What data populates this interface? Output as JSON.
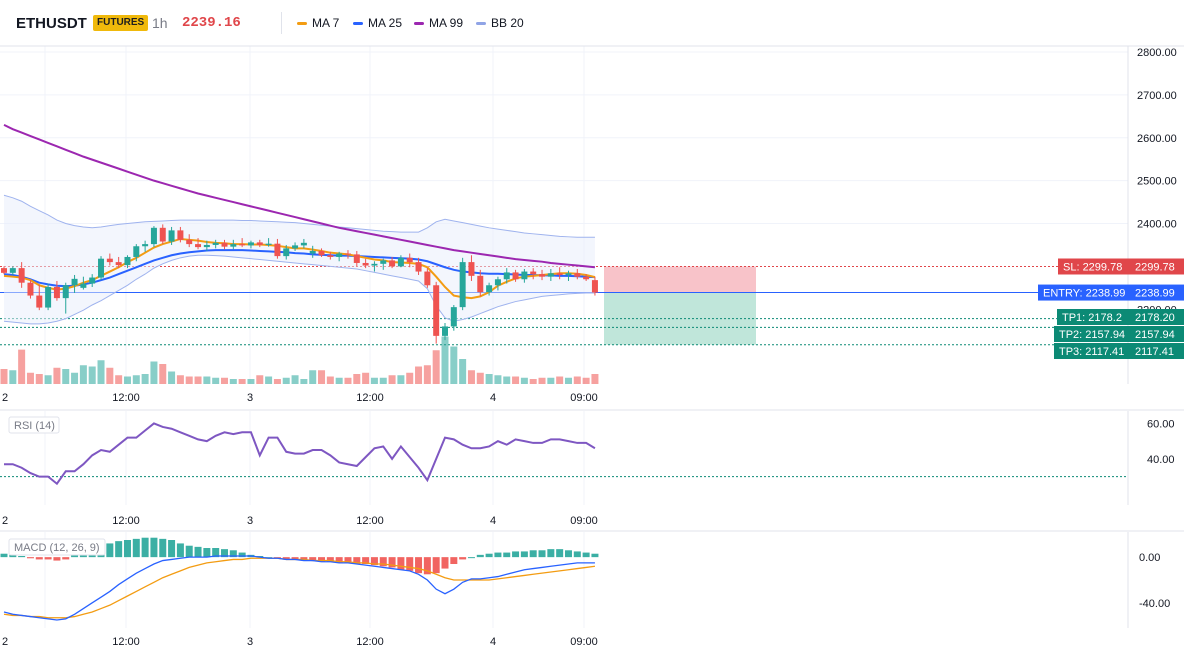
{
  "header": {
    "symbol": "ETHUSDT",
    "badge": "FUTURES",
    "timeframe": "1h",
    "price": "2239.16",
    "legend": [
      {
        "label": "MA 7",
        "color": "#f39c12"
      },
      {
        "label": "MA 25",
        "color": "#2962ff"
      },
      {
        "label": "MA 99",
        "color": "#9c27b0"
      },
      {
        "label": "BB 20",
        "color": "#90a4e6"
      }
    ]
  },
  "colors": {
    "up": "#26a69a",
    "down": "#ef5350",
    "ma7": "#f39c12",
    "ma25": "#2962ff",
    "ma99": "#9c27b0",
    "bb": "#9fb3ee",
    "rsi": "#7e57c2",
    "macd": "#2962ff",
    "signal": "#f39c12"
  },
  "time_axis": [
    "2",
    "12:00",
    "3",
    "12:00",
    "4",
    "09:00"
  ],
  "chart_data": [
    {
      "type": "candlestick",
      "yaxis": {
        "ticks": [
          "2800.00",
          "2700.00",
          "2600.00",
          "2500.00",
          "2400.00",
          "2200.00"
        ],
        "range": [
          2100,
          2820
        ]
      },
      "candles": [
        [
          2296,
          2300,
          2282,
          2285
        ],
        [
          2285,
          2300,
          2280,
          2296
        ],
        [
          2296,
          2310,
          2250,
          2262
        ],
        [
          2262,
          2268,
          2225,
          2232
        ],
        [
          2232,
          2258,
          2198,
          2204
        ],
        [
          2204,
          2260,
          2198,
          2252
        ],
        [
          2252,
          2266,
          2220,
          2226
        ],
        [
          2226,
          2262,
          2190,
          2256
        ],
        [
          2256,
          2280,
          2238,
          2271
        ],
        [
          2250,
          2276,
          2246,
          2260
        ],
        [
          2260,
          2282,
          2252,
          2274
        ],
        [
          2274,
          2324,
          2268,
          2318
        ],
        [
          2318,
          2330,
          2302,
          2310
        ],
        [
          2310,
          2322,
          2296,
          2303
        ],
        [
          2303,
          2326,
          2296,
          2322
        ],
        [
          2322,
          2352,
          2312,
          2347
        ],
        [
          2347,
          2360,
          2334,
          2352
        ],
        [
          2352,
          2394,
          2345,
          2390
        ],
        [
          2390,
          2398,
          2352,
          2358
        ],
        [
          2358,
          2392,
          2350,
          2384
        ],
        [
          2384,
          2392,
          2356,
          2362
        ],
        [
          2362,
          2375,
          2345,
          2352
        ],
        [
          2352,
          2366,
          2340,
          2345
        ],
        [
          2345,
          2360,
          2336,
          2350
        ],
        [
          2350,
          2362,
          2342,
          2355
        ],
        [
          2355,
          2362,
          2340,
          2346
        ],
        [
          2346,
          2362,
          2340,
          2352
        ],
        [
          2352,
          2366,
          2345,
          2349
        ],
        [
          2349,
          2360,
          2342,
          2356
        ],
        [
          2356,
          2362,
          2345,
          2350
        ],
        [
          2350,
          2366,
          2346,
          2353
        ],
        [
          2353,
          2364,
          2318,
          2324
        ],
        [
          2324,
          2350,
          2316,
          2342
        ],
        [
          2342,
          2356,
          2336,
          2349
        ],
        [
          2349,
          2364,
          2342,
          2355
        ],
        [
          2330,
          2348,
          2320,
          2336
        ],
        [
          2336,
          2342,
          2322,
          2326
        ],
        [
          2326,
          2334,
          2316,
          2322
        ],
        [
          2322,
          2334,
          2312,
          2330
        ],
        [
          2330,
          2338,
          2318,
          2328
        ],
        [
          2328,
          2336,
          2300,
          2308
        ],
        [
          2308,
          2318,
          2296,
          2302
        ],
        [
          2302,
          2312,
          2288,
          2306
        ],
        [
          2306,
          2318,
          2292,
          2314
        ],
        [
          2314,
          2322,
          2296,
          2300
        ],
        [
          2300,
          2326,
          2298,
          2320
        ],
        [
          2320,
          2330,
          2298,
          2310
        ],
        [
          2310,
          2320,
          2280,
          2288
        ],
        [
          2288,
          2296,
          2250,
          2256
        ],
        [
          2256,
          2264,
          2120,
          2138
        ],
        [
          2138,
          2168,
          2128,
          2160
        ],
        [
          2160,
          2210,
          2150,
          2205
        ],
        [
          2205,
          2320,
          2198,
          2310
        ],
        [
          2310,
          2326,
          2266,
          2278
        ],
        [
          2278,
          2292,
          2230,
          2240
        ],
        [
          2240,
          2262,
          2232,
          2256
        ],
        [
          2256,
          2276,
          2244,
          2270
        ],
        [
          2270,
          2296,
          2260,
          2286
        ],
        [
          2286,
          2292,
          2264,
          2270
        ],
        [
          2270,
          2294,
          2262,
          2288
        ],
        [
          2288,
          2296,
          2270,
          2282
        ],
        [
          2282,
          2292,
          2268,
          2276
        ],
        [
          2276,
          2294,
          2266,
          2284
        ],
        [
          2284,
          2298,
          2270,
          2280
        ],
        [
          2280,
          2290,
          2266,
          2284
        ],
        [
          2284,
          2294,
          2270,
          2276
        ],
        [
          2276,
          2282,
          2266,
          2270
        ],
        [
          2268,
          2276,
          2232,
          2239.16
        ]
      ],
      "volume": [
        24,
        22,
        55,
        18,
        16,
        14,
        26,
        24,
        18,
        30,
        28,
        38,
        26,
        14,
        12,
        14,
        16,
        36,
        32,
        20,
        14,
        12,
        12,
        12,
        10,
        10,
        8,
        8,
        8,
        14,
        12,
        8,
        10,
        14,
        8,
        22,
        22,
        12,
        10,
        10,
        16,
        18,
        10,
        10,
        14,
        14,
        18,
        28,
        30,
        54,
        76,
        60,
        40,
        22,
        18,
        16,
        14,
        12,
        12,
        10,
        8,
        10,
        10,
        12,
        10,
        12,
        10,
        16
      ],
      "ma7": [
        2278,
        2276,
        2274,
        2268,
        2256,
        2250,
        2246,
        2248,
        2254,
        2262,
        2268,
        2278,
        2288,
        2298,
        2310,
        2320,
        2332,
        2344,
        2352,
        2358,
        2364,
        2362,
        2360,
        2357,
        2355,
        2354,
        2352,
        2352,
        2351,
        2351,
        2350,
        2348,
        2345,
        2342,
        2342,
        2339,
        2336,
        2332,
        2330,
        2328,
        2324,
        2320,
        2316,
        2314,
        2310,
        2309,
        2308,
        2306,
        2298,
        2276,
        2252,
        2232,
        2228,
        2226,
        2230,
        2240,
        2255,
        2264,
        2272,
        2276,
        2278,
        2280,
        2282,
        2284,
        2284,
        2283,
        2280,
        2275
      ],
      "ma25": [
        2282,
        2280,
        2276,
        2270,
        2262,
        2258,
        2255,
        2254,
        2255,
        2258,
        2262,
        2268,
        2274,
        2282,
        2290,
        2298,
        2306,
        2314,
        2320,
        2326,
        2330,
        2333,
        2335,
        2337,
        2338,
        2338,
        2338,
        2338,
        2337,
        2336,
        2335,
        2334,
        2333,
        2331,
        2330,
        2328,
        2327,
        2326,
        2325,
        2325,
        2324,
        2323,
        2322,
        2321,
        2320,
        2319,
        2318,
        2316,
        2312,
        2305,
        2298,
        2292,
        2288,
        2286,
        2284,
        2283,
        2283,
        2282,
        2281,
        2280,
        2280,
        2279,
        2279,
        2278,
        2278,
        2277,
        2276,
        2275
      ],
      "ma99": [
        2630,
        2620,
        2612,
        2604,
        2596,
        2588,
        2580,
        2572,
        2564,
        2556,
        2549,
        2542,
        2535,
        2528,
        2521,
        2514,
        2507,
        2500,
        2494,
        2488,
        2482,
        2476,
        2470,
        2465,
        2460,
        2455,
        2450,
        2445,
        2440,
        2435,
        2430,
        2425,
        2420,
        2415,
        2410,
        2405,
        2400,
        2395,
        2390,
        2386,
        2382,
        2378,
        2374,
        2370,
        2366,
        2362,
        2358,
        2354,
        2350,
        2346,
        2342,
        2338,
        2335,
        2332,
        2329,
        2326,
        2323,
        2320,
        2317,
        2315,
        2313,
        2311,
        2308,
        2306,
        2304,
        2302,
        2300,
        2298
      ],
      "bb_upper": [
        2466,
        2460,
        2452,
        2440,
        2430,
        2420,
        2408,
        2400,
        2395,
        2392,
        2390,
        2392,
        2395,
        2398,
        2400,
        2402,
        2404,
        2405,
        2406,
        2407,
        2408,
        2408,
        2408,
        2408,
        2408,
        2408,
        2408,
        2407,
        2407,
        2406,
        2405,
        2404,
        2403,
        2402,
        2400,
        2398,
        2396,
        2394,
        2392,
        2390,
        2388,
        2386,
        2384,
        2382,
        2381,
        2380,
        2380,
        2380,
        2390,
        2404,
        2410,
        2406,
        2402,
        2398,
        2394,
        2390,
        2387,
        2384,
        2381,
        2378,
        2376,
        2374,
        2372,
        2370,
        2369,
        2368,
        2368,
        2368
      ],
      "bb_lower": [
        2172,
        2170,
        2168,
        2166,
        2166,
        2168,
        2172,
        2178,
        2188,
        2198,
        2210,
        2220,
        2232,
        2244,
        2256,
        2270,
        2282,
        2296,
        2306,
        2314,
        2320,
        2324,
        2326,
        2326,
        2325,
        2324,
        2322,
        2320,
        2318,
        2316,
        2314,
        2312,
        2310,
        2308,
        2306,
        2304,
        2302,
        2300,
        2298,
        2296,
        2294,
        2290,
        2286,
        2282,
        2278,
        2274,
        2270,
        2266,
        2248,
        2208,
        2180,
        2172,
        2176,
        2182,
        2190,
        2198,
        2206,
        2212,
        2218,
        2222,
        2226,
        2230,
        2232,
        2234,
        2236,
        2237,
        2238,
        2238
      ],
      "trade_levels": [
        {
          "label": "SL: 2299.78",
          "axis_label": "2299.78",
          "value": 2299.78,
          "color": "#e0464a"
        },
        {
          "label": "ENTRY: 2238.99",
          "axis_label": "2238.99",
          "value": 2238.99,
          "color": "#2962ff"
        },
        {
          "label": "TP1: 2178.2",
          "axis_label": "2178.20",
          "value": 2178.2,
          "color": "#0c8a75"
        },
        {
          "label": "TP2: 2157.94",
          "axis_label": "2157.94",
          "value": 2157.94,
          "color": "#0c8a75"
        },
        {
          "label": "TP3: 2117.41",
          "axis_label": "2117.41",
          "value": 2117.41,
          "color": "#0c8a75"
        }
      ]
    },
    {
      "type": "line",
      "title": "RSI (14)",
      "yaxis": {
        "ticks": [
          "60.00",
          "40.00"
        ],
        "range": [
          14,
          67
        ]
      },
      "reference_line": 30,
      "values": [
        37,
        37,
        35,
        32,
        30,
        30,
        26,
        33,
        33,
        37,
        42,
        45,
        44,
        48,
        52,
        52,
        56,
        60,
        58,
        57,
        55,
        53,
        51,
        50,
        53,
        55,
        54,
        55,
        55,
        42,
        52,
        52,
        44,
        43,
        43,
        45,
        45,
        42,
        38,
        37,
        36,
        41,
        46,
        47,
        40,
        47,
        41,
        35,
        28,
        40,
        52,
        51,
        48,
        46,
        46,
        47,
        50,
        48,
        51,
        50,
        49,
        49,
        51,
        51,
        50,
        49,
        49,
        46
      ]
    },
    {
      "type": "bar+line",
      "title": "MACD (12, 26, 9)",
      "yaxis": {
        "ticks": [
          "0.00",
          "-40.00"
        ],
        "range": [
          -62,
          22
        ]
      },
      "histogram": [
        3,
        2,
        1,
        -1,
        -2,
        -2,
        -3,
        -2,
        4,
        6,
        8,
        10,
        12,
        14,
        15,
        16,
        17,
        17,
        16,
        15,
        12,
        10,
        9,
        8,
        8,
        7,
        6,
        4,
        2,
        1,
        0,
        -1,
        -2,
        -2,
        -3,
        -3,
        -4,
        -4,
        -5,
        -5,
        -6,
        -6,
        -7,
        -8,
        -9,
        -11,
        -12,
        -14,
        -15,
        -14,
        -10,
        -6,
        -2,
        0,
        2,
        3,
        4,
        4,
        5,
        5,
        6,
        6,
        7,
        7,
        6,
        5,
        4,
        3
      ],
      "macd": [
        -48,
        -50,
        -51,
        -52,
        -53,
        -54,
        -55,
        -54,
        -50,
        -45,
        -40,
        -35,
        -30,
        -24,
        -19,
        -14,
        -10,
        -6,
        -3,
        -2,
        -1,
        0,
        0,
        0,
        1,
        1,
        1,
        1,
        1,
        0,
        -1,
        -1,
        -2,
        -2,
        -3,
        -3,
        -4,
        -4,
        -5,
        -5,
        -6,
        -7,
        -8,
        -9,
        -10,
        -11,
        -12,
        -15,
        -20,
        -28,
        -32,
        -28,
        -22,
        -19,
        -19,
        -18,
        -17,
        -15,
        -13,
        -11,
        -10,
        -9,
        -8,
        -7,
        -6,
        -5,
        -5,
        -5
      ],
      "signal": [
        -50,
        -51,
        -51,
        -52,
        -52,
        -53,
        -53,
        -53,
        -52,
        -50,
        -48,
        -45,
        -42,
        -38,
        -34,
        -30,
        -26,
        -22,
        -18,
        -15,
        -12,
        -9,
        -7,
        -5,
        -4,
        -3,
        -2,
        -2,
        -1,
        -1,
        -1,
        -1,
        -2,
        -2,
        -2,
        -3,
        -3,
        -3,
        -4,
        -4,
        -5,
        -5,
        -6,
        -6,
        -7,
        -8,
        -9,
        -10,
        -12,
        -15,
        -18,
        -20,
        -20,
        -20,
        -20,
        -20,
        -19,
        -18,
        -17,
        -16,
        -15,
        -14,
        -13,
        -12,
        -11,
        -10,
        -9,
        -8
      ]
    }
  ]
}
